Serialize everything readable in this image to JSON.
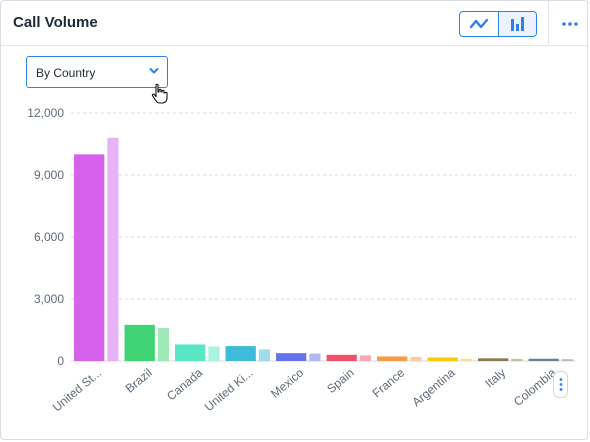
{
  "widget": {
    "title": "Call Volume",
    "toggle": {
      "line_icon": "line-chart-icon",
      "bar_icon": "bar-chart-icon",
      "active": "bar"
    },
    "more_icon": "more-horizontal-icon"
  },
  "filter": {
    "selected": "By Country",
    "icon": "chevron-down-icon"
  },
  "colors": {
    "accent": "#2f80ed",
    "grid": "#d5d9de",
    "axis_text": "#5f6b7a"
  },
  "chart_data": {
    "type": "bar",
    "categories": [
      "United St...",
      "Brazil",
      "Canada",
      "United Ki...",
      "Mexico",
      "Spain",
      "France",
      "Argentina",
      "Italy",
      "Colombia"
    ],
    "series": [
      {
        "values": [
          10000,
          1750,
          800,
          720,
          380,
          300,
          220,
          170,
          130,
          110
        ]
      },
      {
        "values": [
          10800,
          1600,
          700,
          560,
          360,
          270,
          200,
          110,
          100,
          90
        ]
      }
    ],
    "colors": [
      [
        "#d561ed",
        "#e8b3f6"
      ],
      [
        "#3fd374",
        "#9fe9b9"
      ],
      [
        "#58e6c4",
        "#acf2e1"
      ],
      [
        "#3ebbd9",
        "#9fddec"
      ],
      [
        "#6672ec",
        "#b2b8f5"
      ],
      [
        "#ef5169",
        "#f7a8b4"
      ],
      [
        "#f39d4b",
        "#f9cea5"
      ],
      [
        "#f6c915",
        "#fae48a"
      ],
      [
        "#8c7a52",
        "#c5bca8"
      ],
      [
        "#6f7f8c",
        "#b7bfc5"
      ]
    ],
    "yticks": [
      "0",
      "3,000",
      "6,000",
      "9,000",
      "12,000"
    ],
    "ylim": [
      0,
      12000
    ],
    "grid": true,
    "xlabel": "",
    "ylabel": ""
  }
}
